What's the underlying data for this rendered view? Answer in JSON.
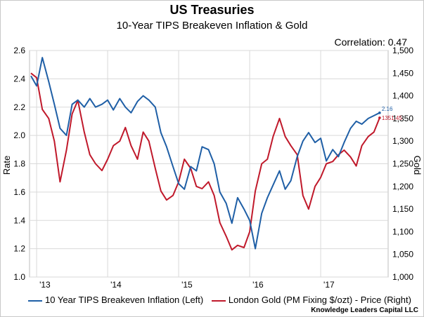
{
  "chart_data": {
    "type": "line",
    "title": "US Treasuries",
    "subtitle": "10-Year TIPS Breakeven Inflation & Gold",
    "annotation": "Correlation: 0.47",
    "ylabel_left": "Rate",
    "ylabel_right": "Gold",
    "ylim_left": [
      1.0,
      2.6
    ],
    "ylim_right": [
      1000,
      1500
    ],
    "yticks_left": [
      "1.0",
      "1.2",
      "1.4",
      "1.6",
      "1.8",
      "2.0",
      "2.2",
      "2.4",
      "2.6"
    ],
    "yticks_right": [
      "1,000",
      "1,050",
      "1,100",
      "1,150",
      "1,200",
      "1,250",
      "1,300",
      "1,350",
      "1,400",
      "1,450",
      "1,500"
    ],
    "xticks": [
      "'13",
      "'14",
      "'15",
      "'16",
      "'17"
    ],
    "xlim": [
      2012.9,
      2017.95
    ],
    "grid": true,
    "legend_position": "bottom",
    "series": [
      {
        "name": "10 Year TIPS Breakeven Inflation (Left)",
        "axis": "left",
        "color": "#1f5fa6",
        "end_label": "2.16",
        "x": [
          2012.92,
          2013.0,
          2013.08,
          2013.17,
          2013.25,
          2013.33,
          2013.42,
          2013.5,
          2013.58,
          2013.67,
          2013.75,
          2013.83,
          2013.92,
          2014.0,
          2014.08,
          2014.17,
          2014.25,
          2014.33,
          2014.42,
          2014.5,
          2014.58,
          2014.67,
          2014.75,
          2014.83,
          2014.92,
          2015.0,
          2015.08,
          2015.17,
          2015.25,
          2015.33,
          2015.42,
          2015.5,
          2015.58,
          2015.67,
          2015.75,
          2015.83,
          2015.92,
          2016.0,
          2016.08,
          2016.17,
          2016.25,
          2016.33,
          2016.42,
          2016.5,
          2016.58,
          2016.67,
          2016.75,
          2016.83,
          2016.92,
          2017.0,
          2017.08,
          2017.17,
          2017.25,
          2017.33,
          2017.42,
          2017.5,
          2017.58,
          2017.67,
          2017.75,
          2017.83
        ],
        "values": [
          2.42,
          2.35,
          2.55,
          2.38,
          2.22,
          2.05,
          2.0,
          2.22,
          2.25,
          2.2,
          2.26,
          2.2,
          2.22,
          2.25,
          2.18,
          2.26,
          2.2,
          2.16,
          2.24,
          2.28,
          2.25,
          2.2,
          2.02,
          1.92,
          1.78,
          1.66,
          1.62,
          1.78,
          1.75,
          1.92,
          1.9,
          1.8,
          1.6,
          1.52,
          1.38,
          1.56,
          1.48,
          1.4,
          1.2,
          1.45,
          1.56,
          1.65,
          1.75,
          1.62,
          1.68,
          1.85,
          1.96,
          2.02,
          1.95,
          1.98,
          1.82,
          1.9,
          1.85,
          1.95,
          2.05,
          2.1,
          2.08,
          2.12,
          2.14,
          2.16
        ]
      },
      {
        "name": "London Gold (PM Fixing $/ozt) - Price  (Right)",
        "axis": "right",
        "color": "#c0192b",
        "end_label": "1351.45",
        "x": [
          2012.92,
          2013.0,
          2013.08,
          2013.17,
          2013.25,
          2013.33,
          2013.42,
          2013.5,
          2013.58,
          2013.67,
          2013.75,
          2013.83,
          2013.92,
          2014.0,
          2014.08,
          2014.17,
          2014.25,
          2014.33,
          2014.42,
          2014.5,
          2014.58,
          2014.67,
          2014.75,
          2014.83,
          2014.92,
          2015.0,
          2015.08,
          2015.17,
          2015.25,
          2015.33,
          2015.42,
          2015.5,
          2015.58,
          2015.67,
          2015.75,
          2015.83,
          2015.92,
          2016.0,
          2016.08,
          2016.17,
          2016.25,
          2016.33,
          2016.42,
          2016.5,
          2016.58,
          2016.67,
          2016.75,
          2016.83,
          2016.92,
          2017.0,
          2017.08,
          2017.17,
          2017.25,
          2017.33,
          2017.42,
          2017.5,
          2017.58,
          2017.67,
          2017.75,
          2017.83
        ],
        "values": [
          1450,
          1440,
          1370,
          1350,
          1300,
          1210,
          1280,
          1360,
          1390,
          1320,
          1270,
          1250,
          1235,
          1260,
          1290,
          1300,
          1330,
          1290,
          1260,
          1320,
          1300,
          1240,
          1190,
          1170,
          1180,
          1210,
          1260,
          1240,
          1200,
          1195,
          1210,
          1180,
          1120,
          1090,
          1060,
          1070,
          1065,
          1100,
          1190,
          1250,
          1260,
          1310,
          1350,
          1310,
          1290,
          1270,
          1180,
          1150,
          1200,
          1220,
          1250,
          1255,
          1270,
          1280,
          1265,
          1245,
          1290,
          1310,
          1320,
          1351.45
        ]
      }
    ]
  },
  "legend": {
    "item_1": "10 Year TIPS Breakeven Inflation (Left)",
    "item_2": "London Gold (PM Fixing $/ozt) - Price  (Right)"
  },
  "source": "Knowledge Leaders Capital LLC"
}
